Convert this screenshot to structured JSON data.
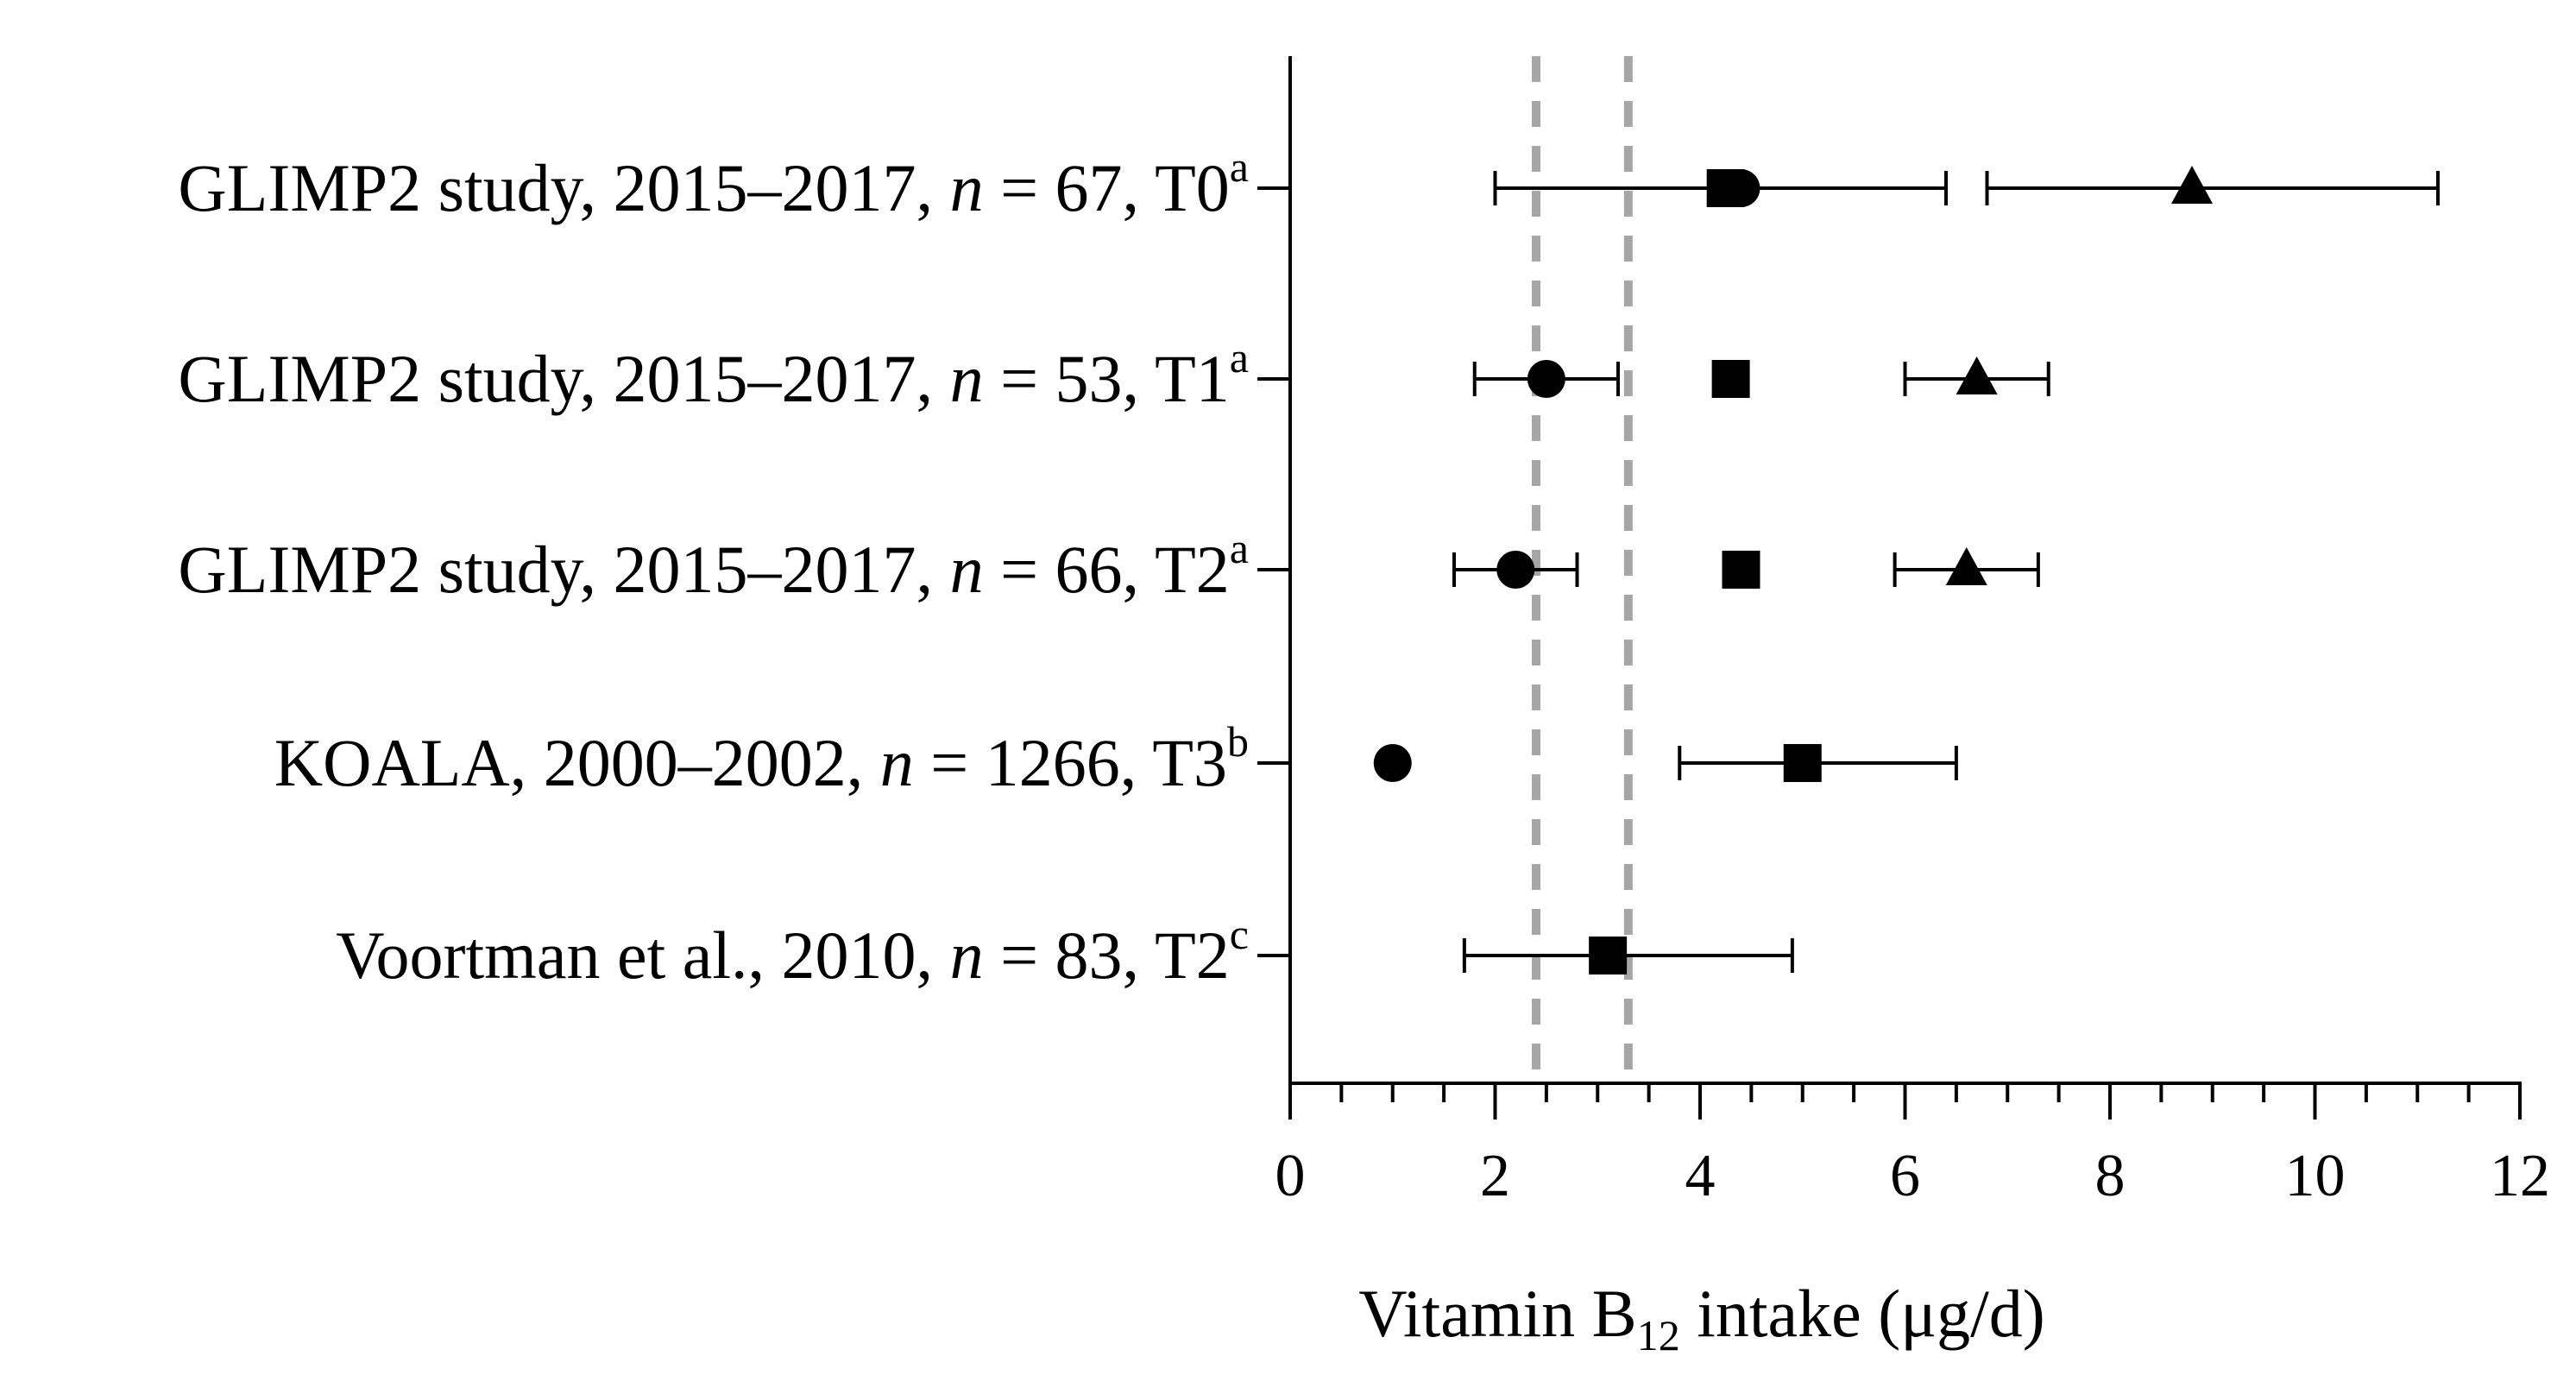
{
  "chart_data": {
    "type": "forest",
    "xlabel_parts": {
      "main": "Vitamin B",
      "subscript": "12",
      "tail": " intake (μg/d)"
    },
    "xlim": [
      0,
      12
    ],
    "x_ticks": [
      "0",
      "2",
      "4",
      "6",
      "8",
      "10",
      "12"
    ],
    "minor_tick_step": 0.5,
    "reference_lines": [
      2.4,
      3.3
    ],
    "reference_color": "#a6a6a6",
    "marker_color": "#000000",
    "rows": [
      {
        "label_pre": "GLIMP2 study, 2015–2017, ",
        "label_n": "n",
        "label_post": " = 67, T0",
        "sup": "a"
      },
      {
        "label_pre": "GLIMP2 study, 2015–2017, ",
        "label_n": "n",
        "label_post": " = 53, T1",
        "sup": "a"
      },
      {
        "label_pre": "GLIMP2 study, 2015–2017, ",
        "label_n": "n",
        "label_post": " = 66, T2",
        "sup": "a"
      },
      {
        "label_pre": "KOALA, 2000–2002, ",
        "label_n": "n",
        "label_post": " = 1266, T3",
        "sup": "b"
      },
      {
        "label_pre": "Voortman et al., 2010, ",
        "label_n": "n",
        "label_post": " = 83, T2",
        "sup": "c"
      }
    ],
    "series": [
      {
        "name": "circle",
        "marker": "circle",
        "points": [
          {
            "row": 0,
            "value": 4.4,
            "low": 2.0,
            "high": 6.4
          },
          {
            "row": 1,
            "value": 2.5,
            "low": 1.8,
            "high": 3.2
          },
          {
            "row": 2,
            "value": 2.2,
            "low": 1.6,
            "high": 2.8
          },
          {
            "row": 3,
            "value": 1.0,
            "low": null,
            "high": null
          }
        ]
      },
      {
        "name": "square",
        "marker": "square",
        "points": [
          {
            "row": 0,
            "value": 4.25,
            "low": null,
            "high": null
          },
          {
            "row": 1,
            "value": 4.3,
            "low": null,
            "high": null
          },
          {
            "row": 2,
            "value": 4.4,
            "low": null,
            "high": null
          },
          {
            "row": 3,
            "value": 5.0,
            "low": 3.8,
            "high": 6.5
          },
          {
            "row": 4,
            "value": 3.1,
            "low": 1.7,
            "high": 4.9
          }
        ]
      },
      {
        "name": "triangle",
        "marker": "triangle",
        "points": [
          {
            "row": 0,
            "value": 8.8,
            "low": 6.8,
            "high": 11.2
          },
          {
            "row": 1,
            "value": 6.7,
            "low": 6.0,
            "high": 7.4
          },
          {
            "row": 2,
            "value": 6.6,
            "low": 5.9,
            "high": 7.3
          }
        ]
      }
    ]
  }
}
